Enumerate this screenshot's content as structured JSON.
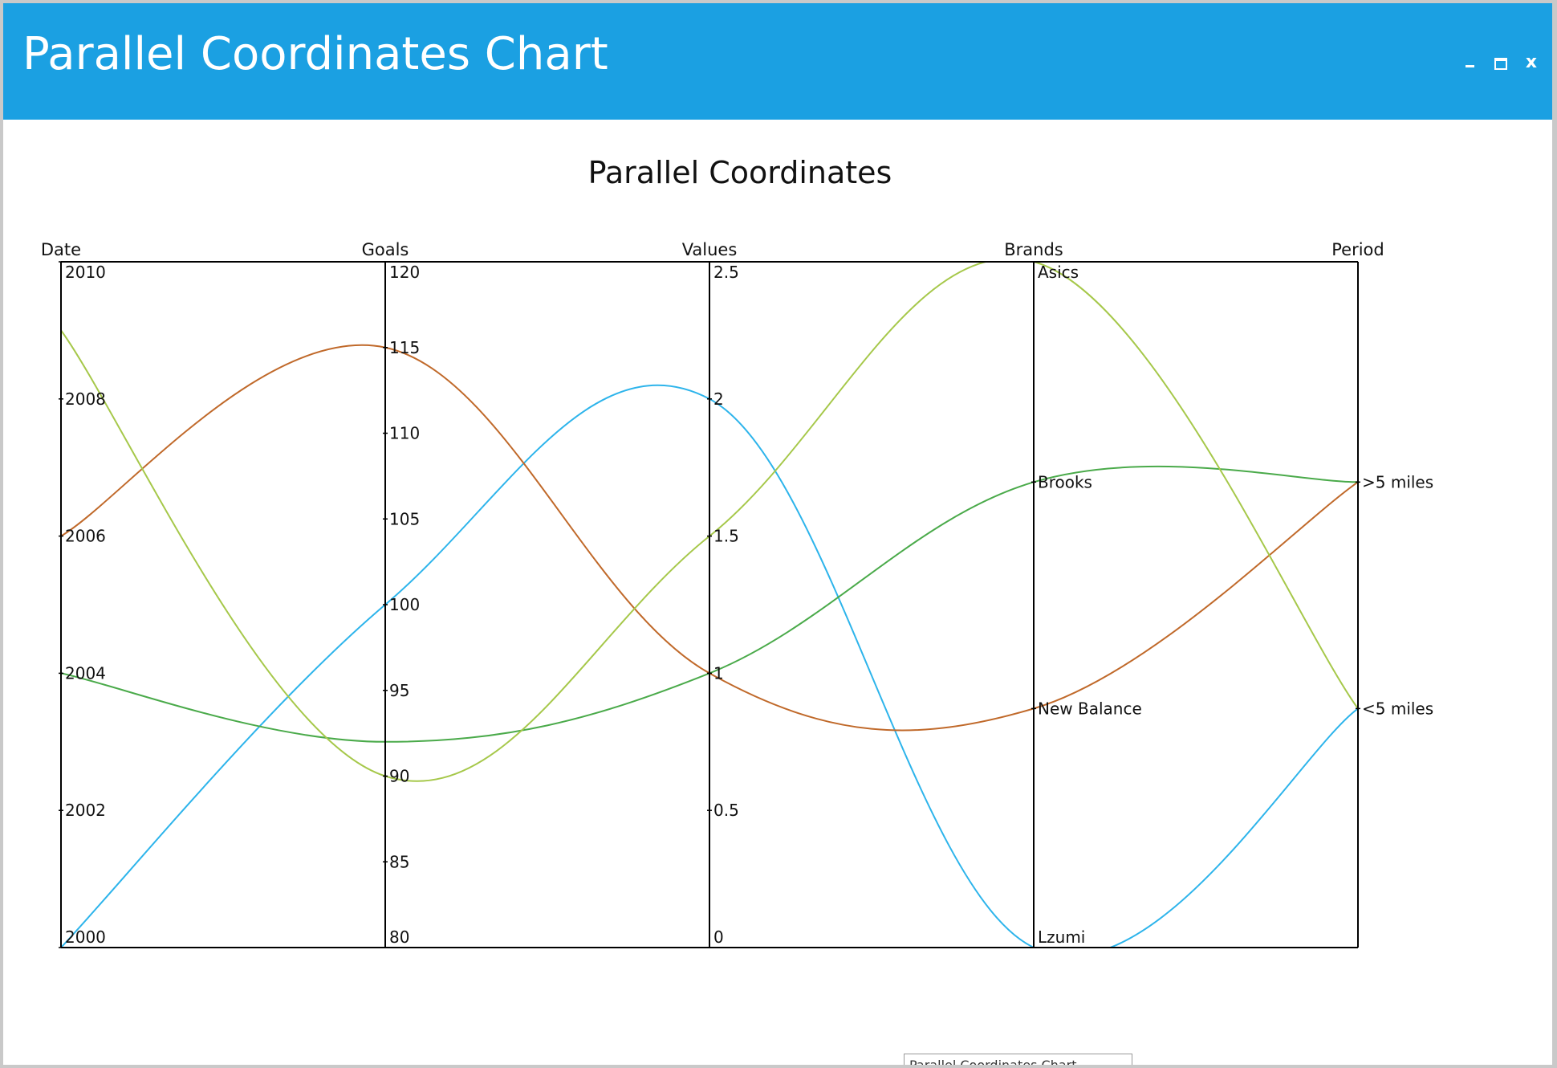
{
  "window": {
    "title": "Parallel Coordinates Chart",
    "controls": [
      "minimize",
      "maximize",
      "close"
    ],
    "close_glyph": "x"
  },
  "tooltip": "Parallel Coordinates Chart",
  "colors": {
    "titlebar": "#1ba0e2",
    "series": [
      "#2db4eb",
      "#c0692a",
      "#4aaa4a",
      "#a6c84a"
    ]
  },
  "chart_data": {
    "type": "parallel_coordinates",
    "title": "Parallel Coordinates",
    "axes": [
      {
        "name": "Date",
        "kind": "numeric",
        "range": [
          2000,
          2010
        ],
        "ticks": [
          "2010",
          "2008",
          "2006",
          "2004",
          "2002",
          "2000"
        ]
      },
      {
        "name": "Goals",
        "kind": "numeric",
        "range": [
          80,
          120
        ],
        "ticks": [
          "120",
          "115",
          "110",
          "105",
          "100",
          "95",
          "90",
          "85",
          "80"
        ]
      },
      {
        "name": "Values",
        "kind": "numeric",
        "range": [
          0,
          2.5
        ],
        "ticks": [
          "2.5",
          "2",
          "1.5",
          "1",
          "0.5",
          "0"
        ]
      },
      {
        "name": "Brands",
        "kind": "categorical",
        "categories": [
          "Asics",
          "Brooks",
          "New Balance",
          "Lzumi"
        ]
      },
      {
        "name": "Period",
        "kind": "categorical",
        "categories": [
          ">5 miles",
          "<5 miles"
        ]
      }
    ],
    "series": [
      {
        "values": [
          2000,
          100,
          2,
          "Lzumi",
          "<5 miles"
        ]
      },
      {
        "values": [
          2006,
          115,
          1,
          "New Balance",
          ">5 miles"
        ]
      },
      {
        "values": [
          2004,
          92,
          1,
          "Brooks",
          ">5 miles"
        ]
      },
      {
        "values": [
          2009,
          90,
          1.5,
          "Asics",
          "<5 miles"
        ]
      }
    ]
  }
}
